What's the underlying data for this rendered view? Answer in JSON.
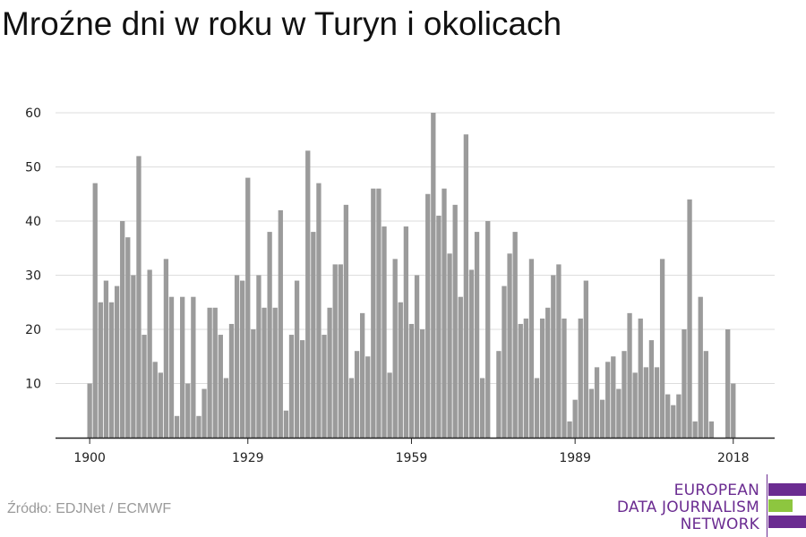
{
  "title": "Mroźne dni w roku w Turyn i okolicach",
  "source": "Źródło: EDJNet / ECMWF",
  "logo": {
    "lines": [
      "EUROPEAN",
      "DATA JOURNALISM",
      "NETWORK"
    ],
    "colors": {
      "purple": "#6b2c91",
      "green": "#8dc63f"
    }
  },
  "chart_data": {
    "type": "bar",
    "title": "Mroźne dni w roku w Turyn i okolicach",
    "xlabel": "",
    "ylabel": "",
    "x_start": 1900,
    "x_end": 2019,
    "ylim": [
      0,
      65
    ],
    "yticks": [
      10,
      20,
      30,
      40,
      50,
      60
    ],
    "xticks": [
      1900,
      1929,
      1959,
      1989,
      2018
    ],
    "grid": true,
    "bar_color": "#9b9b9b",
    "values": [
      10,
      47,
      25,
      29,
      25,
      28,
      40,
      37,
      30,
      52,
      19,
      31,
      14,
      12,
      33,
      26,
      4,
      26,
      10,
      26,
      4,
      9,
      24,
      24,
      19,
      11,
      21,
      30,
      29,
      48,
      20,
      30,
      24,
      38,
      24,
      42,
      5,
      19,
      29,
      18,
      53,
      38,
      47,
      19,
      24,
      32,
      32,
      43,
      11,
      16,
      23,
      15,
      46,
      46,
      39,
      12,
      33,
      25,
      39,
      21,
      30,
      20,
      45,
      60,
      41,
      46,
      34,
      43,
      26,
      56,
      31,
      38,
      11,
      40,
      0,
      16,
      28,
      34,
      38,
      21,
      22,
      33,
      11,
      22,
      24,
      30,
      32,
      22,
      3,
      7,
      22,
      29,
      9,
      13,
      7,
      14,
      15,
      9,
      16,
      23,
      12,
      22,
      13,
      18,
      13,
      33,
      8,
      6,
      8,
      20,
      44,
      3,
      26,
      16,
      3,
      0,
      0,
      20,
      10,
      0
    ]
  }
}
